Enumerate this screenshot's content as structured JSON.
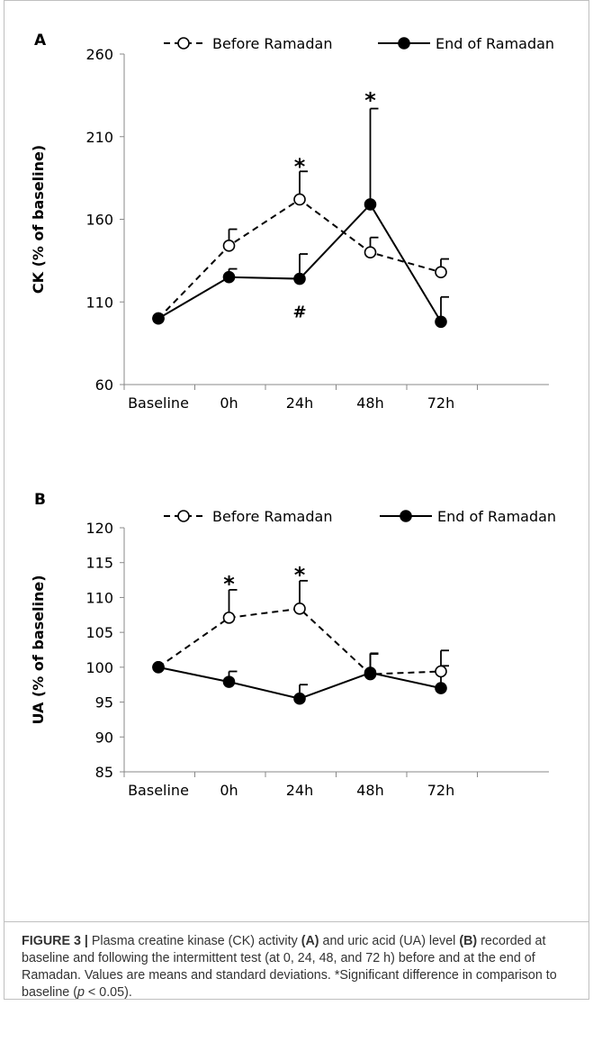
{
  "figure": {
    "caption_label": "FIGURE 3 |",
    "caption_parts": [
      {
        "t": " Plasma creatine kinase (CK) activity ",
        "b": false
      },
      {
        "t": "(A)",
        "b": true
      },
      {
        "t": " and uric acid (UA) level ",
        "b": false
      },
      {
        "t": "(B)",
        "b": true
      },
      {
        "t": " recorded at baseline and following the intermittent test (at 0, 24, 48, and 72 h) before and at the end of Ramadan. Values are means and standard deviations. *Significant difference in comparison to baseline (",
        "b": false
      },
      {
        "t": "p",
        "b": false,
        "i": true
      },
      {
        "t": " < 0.05).",
        "b": false
      }
    ]
  },
  "chart_data": [
    {
      "type": "line",
      "panel_label": "A",
      "ylabel": "CK (% of baseline)",
      "categories": [
        "Baseline",
        "0h",
        "24h",
        "48h",
        "72h"
      ],
      "yticks": [
        60,
        110,
        160,
        210,
        260
      ],
      "ylim": [
        60,
        260
      ],
      "legend_position": "top",
      "series": [
        {
          "name": "Before Ramadan",
          "style": "dashed-open-circle",
          "values": [
            100,
            144,
            172,
            140,
            128
          ],
          "errors": [
            0,
            10,
            17,
            9,
            8
          ]
        },
        {
          "name": "End of Ramadan",
          "style": "solid-filled-circle",
          "values": [
            100,
            125,
            124,
            169,
            98
          ],
          "errors": [
            0,
            5,
            15,
            58,
            15
          ]
        }
      ],
      "annotations": [
        {
          "text": "*",
          "category": "24h",
          "y": 193
        },
        {
          "text": "*",
          "category": "48h",
          "y": 233
        },
        {
          "text": "#",
          "category": "24h",
          "y": 104
        }
      ]
    },
    {
      "type": "line",
      "panel_label": "B",
      "ylabel": "UA (% of baseline)",
      "categories": [
        "Baseline",
        "0h",
        "24h",
        "48h",
        "72h"
      ],
      "yticks": [
        85,
        90,
        95,
        100,
        105,
        110,
        115,
        120
      ],
      "ylim": [
        85,
        120
      ],
      "legend_position": "top",
      "series": [
        {
          "name": "Before Ramadan",
          "style": "dashed-open-circle",
          "values": [
            100,
            107.1,
            108.4,
            99,
            99.4
          ],
          "errors": [
            0,
            4,
            4,
            3,
            3
          ]
        },
        {
          "name": "End of Ramadan",
          "style": "solid-filled-circle",
          "values": [
            100,
            97.9,
            95.5,
            99.2,
            97
          ],
          "errors": [
            0,
            1.5,
            2,
            2.7,
            3.2
          ]
        }
      ],
      "annotations": [
        {
          "text": "*",
          "category": "0h",
          "y": 112.2
        },
        {
          "text": "*",
          "category": "24h",
          "y": 113.5
        }
      ]
    }
  ]
}
